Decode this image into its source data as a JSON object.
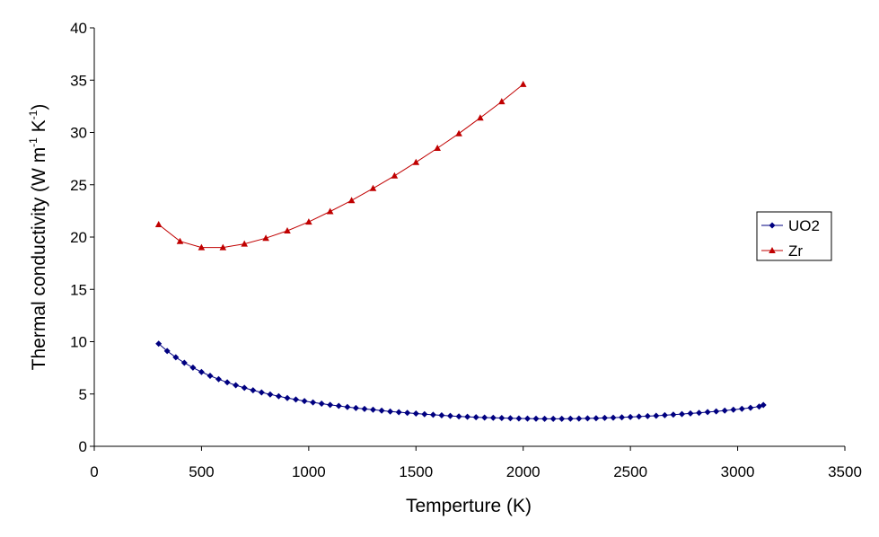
{
  "chart_data": {
    "type": "scatter",
    "title": "",
    "xlabel": "Temperture (K)",
    "ylabel": {
      "base": "Thermal conductivity (W m",
      "exp1": "-1",
      "mid": " K",
      "exp2": "-1",
      "end": ")"
    },
    "xlim": [
      0,
      3500
    ],
    "ylim": [
      0,
      40
    ],
    "xticks": [
      0,
      500,
      1000,
      1500,
      2000,
      2500,
      3000,
      3500
    ],
    "yticks": [
      0,
      5,
      10,
      15,
      20,
      25,
      30,
      35,
      40
    ],
    "grid": false,
    "legend_position": "right",
    "series": [
      {
        "name": "UO2",
        "color": "#000080",
        "marker": "diamond",
        "x": [
          300,
          340,
          380,
          420,
          460,
          500,
          540,
          580,
          620,
          660,
          700,
          740,
          780,
          820,
          860,
          900,
          940,
          980,
          1020,
          1060,
          1100,
          1140,
          1180,
          1220,
          1260,
          1300,
          1340,
          1380,
          1420,
          1460,
          1500,
          1540,
          1580,
          1620,
          1660,
          1700,
          1740,
          1780,
          1820,
          1860,
          1900,
          1940,
          1980,
          2020,
          2060,
          2100,
          2140,
          2180,
          2220,
          2260,
          2300,
          2340,
          2380,
          2420,
          2460,
          2500,
          2540,
          2580,
          2620,
          2660,
          2700,
          2740,
          2780,
          2820,
          2860,
          2900,
          2940,
          2980,
          3020,
          3060,
          3100,
          3120
        ],
        "y": [
          9.8,
          9.11,
          8.51,
          7.98,
          7.52,
          7.11,
          6.74,
          6.41,
          6.11,
          5.84,
          5.59,
          5.36,
          5.15,
          4.96,
          4.79,
          4.62,
          4.47,
          4.33,
          4.2,
          4.08,
          3.96,
          3.86,
          3.76,
          3.66,
          3.57,
          3.49,
          3.41,
          3.33,
          3.26,
          3.19,
          3.13,
          3.07,
          3.01,
          2.96,
          2.91,
          2.86,
          2.82,
          2.78,
          2.75,
          2.72,
          2.7,
          2.68,
          2.66,
          2.65,
          2.64,
          2.63,
          2.63,
          2.63,
          2.64,
          2.65,
          2.67,
          2.69,
          2.71,
          2.74,
          2.77,
          2.8,
          2.84,
          2.88,
          2.92,
          2.97,
          3.02,
          3.08,
          3.14,
          3.2,
          3.27,
          3.34,
          3.42,
          3.5,
          3.59,
          3.68,
          3.8,
          3.95
        ]
      },
      {
        "name": "Zr",
        "color": "#c00000",
        "marker": "triangle",
        "x": [
          300,
          400,
          500,
          600,
          700,
          800,
          900,
          1000,
          1100,
          1200,
          1300,
          1400,
          1500,
          1600,
          1700,
          1800,
          1900,
          2000
        ],
        "y": [
          21.2,
          19.6,
          19.0,
          19.0,
          19.35,
          19.9,
          20.6,
          21.45,
          22.45,
          23.5,
          24.65,
          25.85,
          27.15,
          28.5,
          29.9,
          31.4,
          32.95,
          34.6
        ]
      }
    ]
  }
}
